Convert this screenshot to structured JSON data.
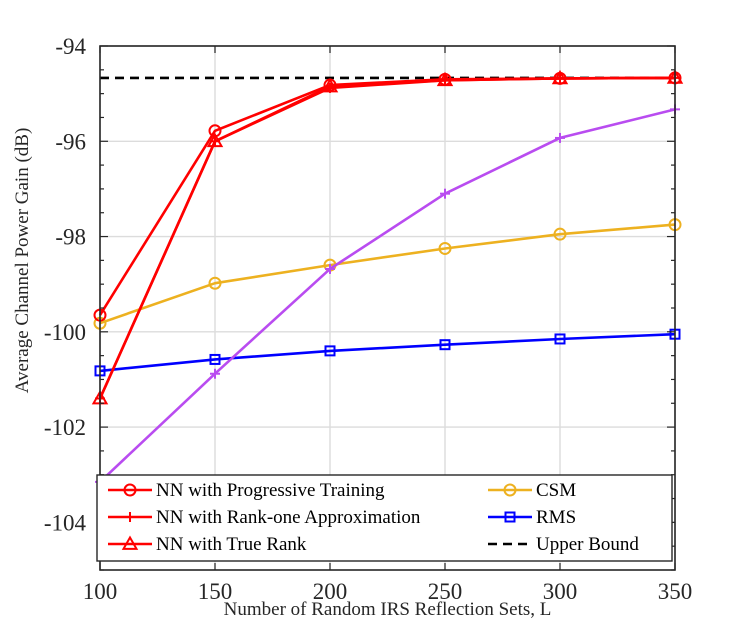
{
  "chart_data": {
    "type": "line",
    "xlabel": "Number of Random IRS Reflection Sets,  L",
    "ylabel": "Average Channel Power Gain (dB)",
    "xlim": [
      100,
      350
    ],
    "ylim": [
      -105,
      -94
    ],
    "x_ticks": [
      100,
      150,
      200,
      250,
      300,
      350
    ],
    "y_ticks": [
      -104,
      -102,
      -100,
      -98,
      -96,
      -94
    ],
    "y_tick_labels": [
      "-104",
      "-102",
      "-100",
      "-98",
      "-96",
      "-94"
    ],
    "grid": true,
    "legend_location": "bottom, boxed inside axes, two columns",
    "x": [
      100,
      150,
      200,
      250,
      300,
      350
    ],
    "series": [
      {
        "name": "NN with Progressive Training",
        "color": "#ff0000",
        "marker": "circle",
        "line": "solid",
        "values": [
          -99.65,
          -95.78,
          -94.82,
          -94.7,
          -94.68,
          -94.67
        ]
      },
      {
        "name": "NN with Rank-one Approximation",
        "color": "#ff0000",
        "marker": "plus",
        "line": "solid",
        "values": [
          -101.4,
          -96.0,
          -94.88,
          -94.72,
          -94.68,
          -94.67
        ]
      },
      {
        "name": "NN with True Rank",
        "color": "#ff0000",
        "marker": "triangle",
        "line": "solid",
        "values": [
          -101.4,
          -96.0,
          -94.85,
          -94.72,
          -94.68,
          -94.67
        ]
      },
      {
        "name": "",
        "color": "#b94cf0",
        "marker": "plus",
        "line": "solid",
        "values": [
          -103.15,
          -100.88,
          -98.68,
          -97.1,
          -95.93,
          -95.33
        ]
      },
      {
        "name": "CSM",
        "color": "#edb120",
        "marker": "circle",
        "line": "solid",
        "values": [
          -99.82,
          -98.98,
          -98.6,
          -98.25,
          -97.95,
          -97.75
        ]
      },
      {
        "name": "RMS",
        "color": "#0000ff",
        "marker": "square",
        "line": "solid",
        "values": [
          -100.82,
          -100.58,
          -100.4,
          -100.27,
          -100.15,
          -100.05
        ]
      },
      {
        "name": "Upper Bound",
        "color": "#000000",
        "marker": "none",
        "line": "dashed",
        "values": [
          -94.67,
          -94.67,
          -94.67,
          -94.67,
          -94.67,
          -94.67
        ]
      }
    ],
    "legend": [
      {
        "series": 0,
        "label": "NN with Progressive Training"
      },
      {
        "series": 1,
        "label": "NN with Rank-one Approximation"
      },
      {
        "series": 2,
        "label": "NN with True Rank"
      },
      {
        "series": 4,
        "label": "CSM"
      },
      {
        "series": 5,
        "label": "RMS"
      },
      {
        "series": 6,
        "label": "Upper Bound"
      }
    ]
  }
}
